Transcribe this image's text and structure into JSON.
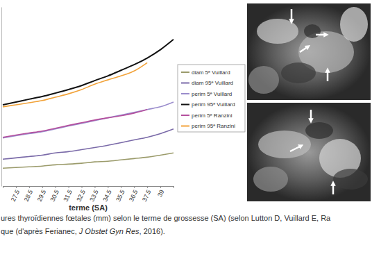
{
  "chart_data": {
    "type": "line",
    "x_label": "terme (SA)",
    "categories": [
      null,
      "27.5",
      "28.5",
      "29.5",
      "30.5",
      "31.5",
      "32.5",
      "33.5",
      "34.5",
      "35.5",
      "36.5",
      "37.5",
      "39",
      null
    ],
    "series": [
      {
        "name": "diam 5ᵉ Vuillard",
        "color": "#9b9b6b",
        "values": [
          8,
          8.3,
          8.6,
          8.9,
          9.5,
          9.8,
          10.2,
          10.8,
          11.1,
          11.7,
          12.3,
          12.9,
          13.8,
          14.8
        ]
      },
      {
        "name": "diam 95ᵉ Vuillard",
        "color": "#7a6aa8",
        "values": [
          12,
          12.6,
          13.2,
          13.8,
          14.8,
          15.4,
          16.3,
          17.2,
          18.2,
          19.4,
          20.6,
          21.8,
          23.4,
          25.5
        ]
      },
      {
        "name": "perim 5ᵉ Vuillard",
        "color": "#9a8ccc",
        "values": [
          21.5,
          22.5,
          23.4,
          24.3,
          25.5,
          26.8,
          28,
          29.2,
          30.5,
          31.7,
          32.9,
          34.2,
          35.4,
          37.5
        ]
      },
      {
        "name": "perim 95ᵉ Vuillard",
        "color": "#111111",
        "values": [
          36.3,
          37.5,
          38.8,
          40,
          41.5,
          43.1,
          44.9,
          47.1,
          49.2,
          51.7,
          54.2,
          57.2,
          60.9,
          65.5
        ]
      },
      {
        "name": "perim 5ᵉ Ranzini",
        "color": "#b5509e",
        "values": [
          21.8,
          22.8,
          23.7,
          24.6,
          25.8,
          27.1,
          28.3,
          29.5,
          30.5,
          31.4,
          32.6,
          34.2,
          null,
          null
        ]
      },
      {
        "name": "perim 95ᵉ Ranzini",
        "color": "#f2a33a",
        "values": [
          35.4,
          36.3,
          37.2,
          38.2,
          39.7,
          41.2,
          43.1,
          45.5,
          47.4,
          49.2,
          51.4,
          55.1,
          null,
          null
        ]
      }
    ],
    "ylim": [
      0,
      80
    ],
    "yticks": [],
    "tick_labels": "x",
    "legend": "right",
    "grid": false
  },
  "caption": [
    [
      "ures thyroïdiennes fœtales (mm) selon le terme de grossesse (SA) (selon Lutton D, Vuillard E, Ra"
    ],
    [
      "que (d'après Ferianec, ",
      "J Obstet Gyn Res",
      ", 2016)."
    ]
  ]
}
